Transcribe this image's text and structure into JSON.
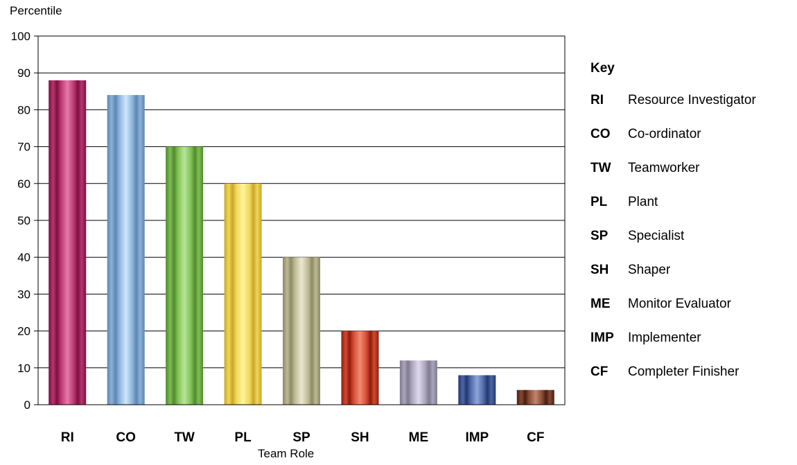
{
  "chart_data": {
    "type": "bar",
    "ylabel": "Percentile",
    "xlabel": "Team Role",
    "ylim": [
      0,
      100
    ],
    "yticks": [
      0,
      10,
      20,
      30,
      40,
      50,
      60,
      70,
      80,
      90,
      100
    ],
    "grid": true,
    "categories": [
      "RI",
      "CO",
      "TW",
      "PL",
      "SP",
      "SH",
      "ME",
      "IMP",
      "CF"
    ],
    "values": [
      88,
      84,
      70,
      60,
      40,
      20,
      12,
      8,
      4
    ],
    "colors": [
      {
        "dark": "#7a1040",
        "mid": "#b8356e",
        "light": "#e57aab"
      },
      {
        "dark": "#5f86b0",
        "mid": "#8ab3db",
        "light": "#cfe6fb"
      },
      {
        "dark": "#4f8a2e",
        "mid": "#7fbf54",
        "light": "#b8e69a"
      },
      {
        "dark": "#c9a52a",
        "mid": "#efd65a",
        "light": "#fff59a"
      },
      {
        "dark": "#8d8a66",
        "mid": "#bdb994",
        "light": "#ebe8cf"
      },
      {
        "dark": "#8f1c0c",
        "mid": "#d24a33",
        "light": "#f28a72"
      },
      {
        "dark": "#7f7a8e",
        "mid": "#aba5bc",
        "light": "#ddd8ea"
      },
      {
        "dark": "#23386e",
        "mid": "#4d66a8",
        "light": "#8ea6d9"
      },
      {
        "dark": "#4a1e10",
        "mid": "#874a34",
        "light": "#c2846c"
      }
    ],
    "legend": {
      "title": "Key",
      "entries": [
        {
          "abbr": "RI",
          "name": "Resource Investigator"
        },
        {
          "abbr": "CO",
          "name": "Co-ordinator"
        },
        {
          "abbr": "TW",
          "name": "Teamworker"
        },
        {
          "abbr": "PL",
          "name": "Plant"
        },
        {
          "abbr": "SP",
          "name": "Specialist"
        },
        {
          "abbr": "SH",
          "name": "Shaper"
        },
        {
          "abbr": "ME",
          "name": "Monitor Evaluator"
        },
        {
          "abbr": "IMP",
          "name": "Implementer"
        },
        {
          "abbr": "CF",
          "name": "Completer Finisher"
        }
      ]
    }
  }
}
